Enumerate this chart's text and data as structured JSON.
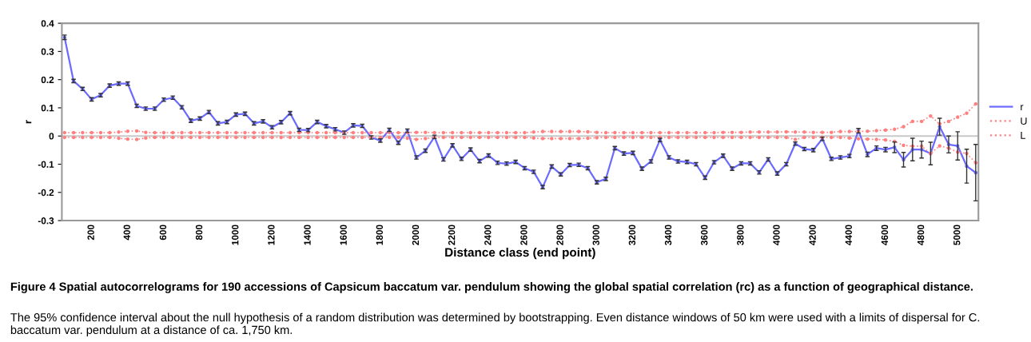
{
  "chart_data": {
    "type": "line",
    "xlabel": "Distance class (end point)",
    "ylabel": "r",
    "categories": [
      null,
      null,
      null,
      "200",
      null,
      null,
      null,
      "400",
      null,
      null,
      null,
      "600",
      null,
      null,
      null,
      "800",
      null,
      null,
      null,
      "1000",
      null,
      null,
      null,
      "1200",
      null,
      null,
      null,
      "1400",
      null,
      null,
      null,
      "1600",
      null,
      null,
      null,
      "1800",
      null,
      null,
      null,
      "2000",
      null,
      null,
      null,
      "2200",
      null,
      null,
      null,
      "2400",
      null,
      null,
      null,
      "2600",
      null,
      null,
      null,
      "2800",
      null,
      null,
      null,
      "3000",
      null,
      null,
      null,
      "3200",
      null,
      null,
      null,
      "3400",
      null,
      null,
      null,
      "3600",
      null,
      null,
      null,
      "3800",
      null,
      null,
      null,
      "4000",
      null,
      null,
      null,
      "4200",
      null,
      null,
      null,
      "4400",
      null,
      null,
      null,
      "4600",
      null,
      null,
      null,
      "4800",
      null,
      null,
      null,
      "5000",
      null,
      null
    ],
    "ylim": [
      -0.3,
      0.4
    ],
    "yticks": [
      -0.3,
      -0.2,
      -0.1,
      0,
      0.1,
      0.2,
      0.3,
      0.4
    ],
    "series": [
      {
        "name": "r",
        "color": "#6b6bff",
        "marker": "circle",
        "line_style": "solid",
        "values": [
          0.35,
          0.195,
          0.167,
          0.13,
          0.145,
          0.179,
          0.186,
          0.186,
          0.107,
          0.097,
          0.097,
          0.129,
          0.136,
          0.102,
          0.054,
          0.062,
          0.085,
          0.045,
          0.05,
          0.076,
          0.079,
          0.045,
          0.052,
          0.031,
          0.049,
          0.081,
          0.022,
          0.021,
          0.05,
          0.035,
          0.024,
          0.012,
          0.038,
          0.036,
          -0.005,
          -0.016,
          0.022,
          -0.024,
          0.019,
          -0.076,
          -0.052,
          -0.003,
          -0.083,
          -0.033,
          -0.081,
          -0.048,
          -0.089,
          -0.069,
          -0.095,
          -0.098,
          -0.092,
          -0.114,
          -0.127,
          -0.181,
          -0.108,
          -0.136,
          -0.103,
          -0.102,
          -0.114,
          -0.164,
          -0.152,
          -0.043,
          -0.062,
          -0.06,
          -0.116,
          -0.09,
          -0.014,
          -0.076,
          -0.09,
          -0.092,
          -0.1,
          -0.148,
          -0.093,
          -0.07,
          -0.116,
          -0.097,
          -0.097,
          -0.129,
          -0.083,
          -0.133,
          -0.1,
          -0.027,
          -0.046,
          -0.05,
          -0.01,
          -0.081,
          -0.076,
          -0.071,
          0.019,
          -0.065,
          -0.043,
          -0.048,
          -0.04,
          -0.084,
          -0.048,
          -0.048,
          -0.062,
          0.033,
          -0.03,
          -0.035,
          -0.107,
          -0.13
        ],
        "errors": [
          0.008,
          0.006,
          0.006,
          0.006,
          0.006,
          0.006,
          0.006,
          0.006,
          0.006,
          0.006,
          0.006,
          0.006,
          0.006,
          0.006,
          0.006,
          0.006,
          0.006,
          0.006,
          0.006,
          0.006,
          0.006,
          0.006,
          0.006,
          0.006,
          0.006,
          0.006,
          0.006,
          0.006,
          0.006,
          0.006,
          0.006,
          0.006,
          0.006,
          0.006,
          0.006,
          0.006,
          0.006,
          0.006,
          0.006,
          0.006,
          0.006,
          0.006,
          0.006,
          0.006,
          0.006,
          0.006,
          0.006,
          0.006,
          0.006,
          0.006,
          0.006,
          0.006,
          0.006,
          0.006,
          0.006,
          0.006,
          0.006,
          0.006,
          0.006,
          0.006,
          0.006,
          0.006,
          0.006,
          0.006,
          0.006,
          0.006,
          0.006,
          0.006,
          0.006,
          0.006,
          0.006,
          0.006,
          0.006,
          0.006,
          0.006,
          0.006,
          0.006,
          0.006,
          0.006,
          0.006,
          0.006,
          0.006,
          0.006,
          0.006,
          0.006,
          0.006,
          0.006,
          0.006,
          0.008,
          0.008,
          0.008,
          0.008,
          0.019,
          0.026,
          0.04,
          0.03,
          0.04,
          0.03,
          0.03,
          0.05,
          0.06,
          0.1
        ]
      },
      {
        "name": "U",
        "color": "#ff8080",
        "marker": "circle",
        "line_style": "dotted",
        "values": [
          0.012,
          0.012,
          0.012,
          0.012,
          0.012,
          0.012,
          0.014,
          0.017,
          0.018,
          0.013,
          0.012,
          0.012,
          0.012,
          0.012,
          0.012,
          0.012,
          0.012,
          0.012,
          0.012,
          0.012,
          0.012,
          0.012,
          0.012,
          0.012,
          0.012,
          0.012,
          0.012,
          0.012,
          0.012,
          0.012,
          0.012,
          0.012,
          0.012,
          0.012,
          0.012,
          0.012,
          0.012,
          0.012,
          0.012,
          0.013,
          0.013,
          0.012,
          0.012,
          0.012,
          0.012,
          0.012,
          0.012,
          0.012,
          0.012,
          0.012,
          0.012,
          0.012,
          0.014,
          0.016,
          0.016,
          0.016,
          0.016,
          0.016,
          0.015,
          0.013,
          0.012,
          0.012,
          0.012,
          0.012,
          0.012,
          0.012,
          0.012,
          0.012,
          0.012,
          0.012,
          0.012,
          0.012,
          0.012,
          0.013,
          0.013,
          0.013,
          0.014,
          0.014,
          0.014,
          0.014,
          0.015,
          0.014,
          0.014,
          0.013,
          0.013,
          0.013,
          0.016,
          0.016,
          0.016,
          0.017,
          0.019,
          0.021,
          0.024,
          0.033,
          0.052,
          0.052,
          0.071,
          0.043,
          0.052,
          0.067,
          0.081,
          0.114
        ]
      },
      {
        "name": "L",
        "color": "#ff8080",
        "marker": "circle",
        "line_style": "dotted",
        "values": [
          -0.005,
          -0.005,
          -0.005,
          -0.005,
          -0.005,
          -0.005,
          -0.008,
          -0.011,
          -0.012,
          -0.007,
          -0.005,
          -0.005,
          -0.005,
          -0.005,
          -0.005,
          -0.005,
          -0.005,
          -0.005,
          -0.005,
          -0.005,
          -0.005,
          -0.005,
          -0.005,
          -0.005,
          -0.005,
          -0.005,
          -0.005,
          -0.005,
          -0.005,
          -0.005,
          -0.005,
          -0.005,
          -0.005,
          -0.005,
          -0.005,
          -0.005,
          -0.005,
          -0.005,
          -0.008,
          -0.012,
          -0.009,
          -0.005,
          -0.005,
          -0.005,
          -0.005,
          -0.005,
          -0.005,
          -0.005,
          -0.005,
          -0.005,
          -0.005,
          -0.005,
          -0.007,
          -0.009,
          -0.009,
          -0.009,
          -0.009,
          -0.009,
          -0.008,
          -0.006,
          -0.005,
          -0.005,
          -0.005,
          -0.005,
          -0.005,
          -0.005,
          -0.005,
          -0.005,
          -0.005,
          -0.005,
          -0.005,
          -0.005,
          -0.005,
          -0.005,
          -0.005,
          -0.005,
          -0.005,
          -0.005,
          -0.005,
          -0.005,
          -0.005,
          -0.012,
          -0.005,
          -0.005,
          -0.005,
          -0.005,
          -0.005,
          -0.007,
          -0.01,
          -0.011,
          -0.012,
          -0.014,
          -0.019,
          -0.033,
          -0.036,
          -0.036,
          -0.062,
          -0.035,
          -0.043,
          -0.057,
          -0.062,
          -0.095
        ]
      }
    ],
    "ref_lines": [
      {
        "axis": "y",
        "value": 0,
        "color": "#c8c8c8"
      }
    ],
    "legend": "right",
    "grid": false,
    "annotations": [
      "Figure 4 Spatial autocorrelograms for 190 accessions of Capsicum baccatum var. pendulum showing the global spatial correlation (rc) as a function of geographical distance.",
      "The 95% confidence interval about the null hypothesis of a random distribution was determined by bootstrapping. Even distance windows of 50 km were used with a limits of dispersal for C. baccatum var. pendulum at a distance of ca. 1,750 km."
    ]
  }
}
